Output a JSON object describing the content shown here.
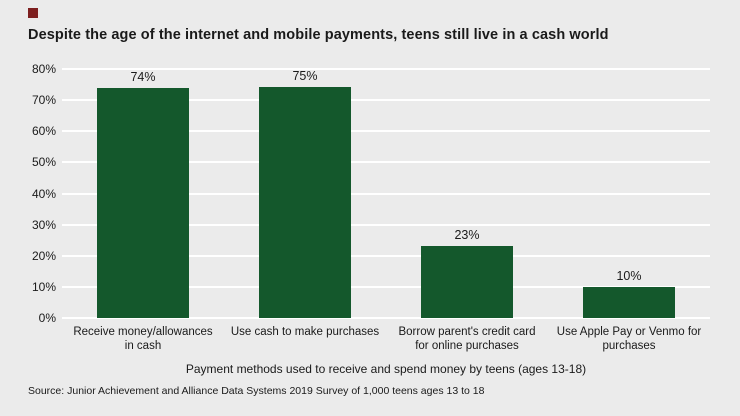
{
  "accent": {
    "square_color": "#7d1f1f"
  },
  "title": "Despite the age of the internet and mobile payments, teens still live in a cash world",
  "chart_data": {
    "type": "bar",
    "categories": [
      "Receive money/allowances\nin cash",
      "Use cash to make purchases",
      "Borrow parent's credit card\nfor online purchases",
      "Use Apple Pay or Venmo for\npurchases"
    ],
    "values": [
      74,
      75,
      23,
      10
    ],
    "value_labels": [
      "74%",
      "75%",
      "23%",
      "10%"
    ],
    "title": "Despite the age of the internet and mobile payments, teens still live in a cash world",
    "xlabel": "Payment methods used to receive and spend money by teens (ages 13-18)",
    "ylabel": "",
    "ylim": [
      0,
      80
    ],
    "ytick_step": 10,
    "ytick_labels": [
      "0%",
      "10%",
      "20%",
      "30%",
      "40%",
      "50%",
      "60%",
      "70%",
      "80%"
    ],
    "grid": true,
    "legend": "none",
    "bar_color": "#14582c",
    "background_color": "#ebebeb",
    "gridline_color": "#ffffff"
  },
  "source": "Source: Junior Achievement and Alliance Data Systems 2019 Survey of 1,000 teens ages 13 to 18"
}
